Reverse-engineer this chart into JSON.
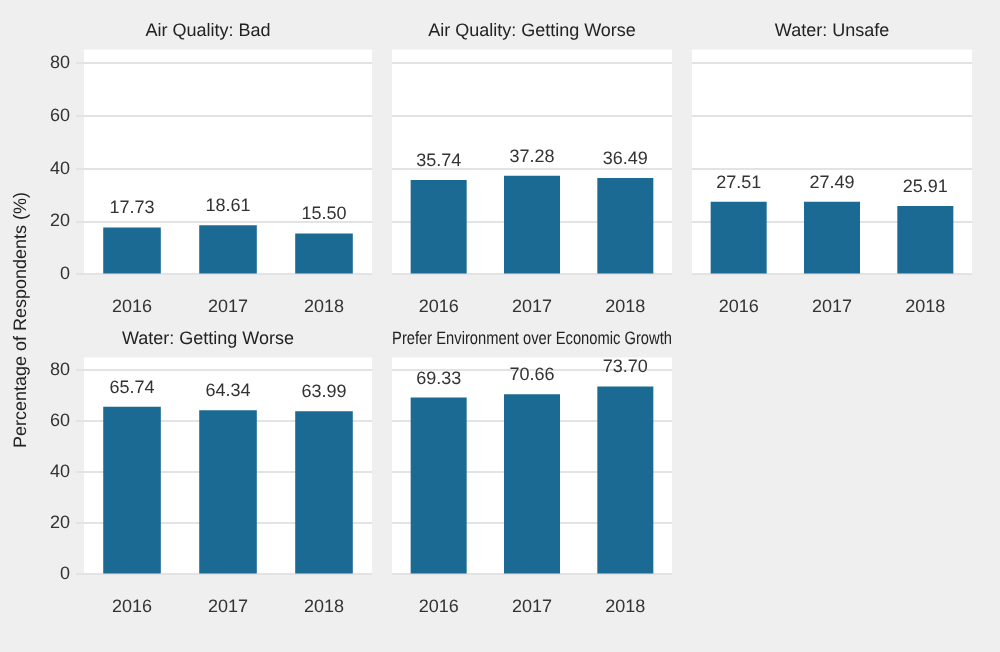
{
  "chart_data": [
    {
      "type": "bar",
      "title": "Air Quality: Bad",
      "ylabel": "Percentage of Respondents (%)",
      "categories": [
        "2016",
        "2017",
        "2018"
      ],
      "values": [
        17.73,
        18.61,
        15.5
      ],
      "value_labels": [
        "17.73",
        "18.61",
        "15.50"
      ],
      "color": "#1a6a94",
      "ylim": [
        0,
        85
      ],
      "yticks": [
        0,
        20,
        40,
        60,
        80
      ],
      "grid": "y"
    },
    {
      "type": "bar",
      "title": "Air Quality: Getting Worse",
      "categories": [
        "2016",
        "2017",
        "2018"
      ],
      "values": [
        35.74,
        37.28,
        36.49
      ],
      "value_labels": [
        "35.74",
        "37.28",
        "36.49"
      ],
      "color": "#1a6a94",
      "ylim": [
        0,
        85
      ],
      "yticks": [
        0,
        20,
        40,
        60,
        80
      ],
      "grid": "y",
      "tick_labels": "x"
    },
    {
      "type": "bar",
      "title": "Water: Unsafe",
      "categories": [
        "2016",
        "2017",
        "2018"
      ],
      "values": [
        27.51,
        27.49,
        25.91
      ],
      "value_labels": [
        "27.51",
        "27.49",
        "25.91"
      ],
      "color": "#1a6a94",
      "ylim": [
        0,
        85
      ],
      "yticks": [
        0,
        20,
        40,
        60,
        80
      ],
      "grid": "y",
      "tick_labels": "x"
    },
    {
      "type": "bar",
      "title": "Water: Getting Worse",
      "categories": [
        "2016",
        "2017",
        "2018"
      ],
      "values": [
        65.74,
        64.34,
        63.99
      ],
      "value_labels": [
        "65.74",
        "64.34",
        "63.99"
      ],
      "color": "#1a6a94",
      "ylim": [
        0,
        85
      ],
      "yticks": [
        0,
        20,
        40,
        60,
        80
      ],
      "grid": "y"
    },
    {
      "type": "bar",
      "title": "Prefer Environment over Economic Growth",
      "categories": [
        "2016",
        "2017",
        "2018"
      ],
      "values": [
        69.33,
        70.66,
        73.7
      ],
      "value_labels": [
        "69.33",
        "70.66",
        "73.70"
      ],
      "color": "#1a6a94",
      "ylim": [
        0,
        85
      ],
      "yticks": [
        0,
        20,
        40,
        60,
        80
      ],
      "grid": "y",
      "tick_labels": "x"
    }
  ]
}
